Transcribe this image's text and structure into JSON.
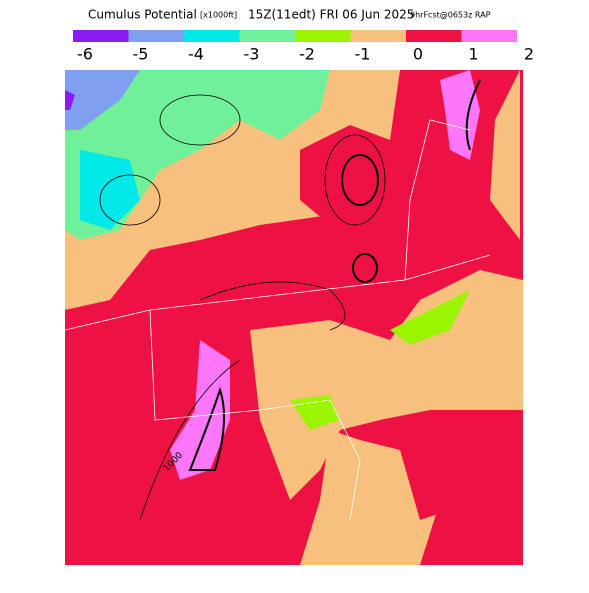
{
  "header": {
    "title": "Cumulus Potential",
    "units": "[x1000ft]",
    "valid": "15Z(11edt) FRI 06 Jun 2025",
    "forecast": "9hrFcst@0653z RAP"
  },
  "colorbar": {
    "colors": [
      "#8a1cf0",
      "#7f9fef",
      "#00e8e8",
      "#70f09a",
      "#9cf500",
      "#f7c07c",
      "#ee1144",
      "#fd78f8"
    ],
    "labels": [
      "-6",
      "-5",
      "-4",
      "-3",
      "-2",
      "-1",
      "0",
      "1",
      "2"
    ]
  },
  "map": {
    "contour_labels": [
      "1000"
    ]
  }
}
